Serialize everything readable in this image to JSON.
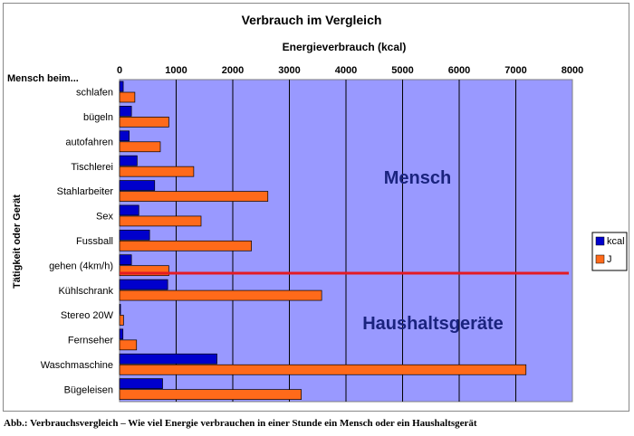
{
  "caption": "Abb.: Verbrauchsvergleich – Wie viel Energie verbrauchen in einer Stunde ein Mensch oder ein Haushaltsgerät",
  "chart_data": {
    "type": "bar",
    "orientation": "horizontal",
    "title": "Verbrauch im Vergleich",
    "xlabel": "Energieverbrauch (kcal)",
    "ylabel": "Tätigkeit oder Gerät",
    "category_header": "Mensch beim...",
    "xlim": [
      0,
      8000
    ],
    "xticks": [
      0,
      1000,
      2000,
      3000,
      4000,
      5000,
      6000,
      7000,
      8000
    ],
    "grid": true,
    "legend_position": "right",
    "categories": [
      "schlafen",
      "bügeln",
      "autofahren",
      "Tischlerei",
      "Stahlarbeiter",
      "Sex",
      "Fussball",
      "gehen (4km/h)",
      "Kühlschrank",
      "Stereo 20W",
      "Fernseher",
      "Waschmaschine",
      "Bügeleisen"
    ],
    "series": [
      {
        "name": "kcal",
        "color": "#0000cc",
        "values": [
          65,
          210,
          170,
          310,
          620,
          340,
          530,
          210,
          850,
          17,
          60,
          1720,
          760
        ]
      },
      {
        "name": "J",
        "color": "#ff6a1a",
        "values": [
          270,
          870,
          720,
          1310,
          2620,
          1440,
          2330,
          870,
          3570,
          70,
          300,
          7180,
          3210
        ]
      }
    ],
    "annotations": [
      {
        "text": "Mensch",
        "color": "#1a237e"
      },
      {
        "text": "Haushaltsgeräte",
        "color": "#1a237e"
      }
    ],
    "divider_color": "#e31b23"
  }
}
